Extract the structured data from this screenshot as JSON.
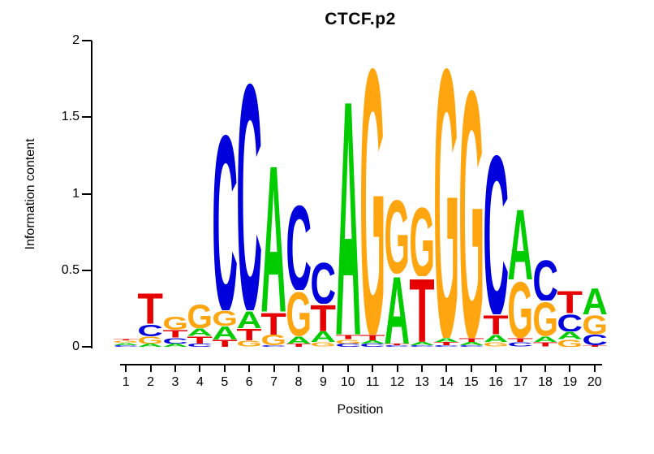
{
  "title": "CTCF.p2",
  "axes": {
    "ylabel": "Information content",
    "xlabel": "Position",
    "yticks": [
      {
        "label": "0",
        "value": 0
      },
      {
        "label": "0.5",
        "value": 0.5
      },
      {
        "label": "1",
        "value": 1
      },
      {
        "label": "1.5",
        "value": 1.5
      },
      {
        "label": "2",
        "value": 2
      }
    ],
    "xticks": [
      "1",
      "2",
      "3",
      "4",
      "5",
      "6",
      "7",
      "8",
      "9",
      "10",
      "11",
      "12",
      "13",
      "14",
      "15",
      "16",
      "17",
      "18",
      "19",
      "20"
    ]
  },
  "colors": {
    "A": "#00CC00",
    "C": "#0000DD",
    "G": "#FFA510",
    "T": "#E60000"
  },
  "chart_data": {
    "type": "bar",
    "subtype": "sequence-logo",
    "title": "CTCF.p2",
    "xlabel": "Position",
    "ylabel": "Information content",
    "ylim": [
      0,
      2
    ],
    "units": "bits",
    "stack_order": "top_to_bottom",
    "positions": [
      {
        "position": 1,
        "stack": [
          {
            "base": "T",
            "bits": 0.015
          },
          {
            "base": "G",
            "bits": 0.015
          },
          {
            "base": "A",
            "bits": 0.015
          },
          {
            "base": "C",
            "bits": 0.01
          }
        ]
      },
      {
        "position": 2,
        "stack": [
          {
            "base": "T",
            "bits": 0.21
          },
          {
            "base": "C",
            "bits": 0.08
          },
          {
            "base": "G",
            "bits": 0.05
          },
          {
            "base": "A",
            "bits": 0.02
          }
        ]
      },
      {
        "position": 3,
        "stack": [
          {
            "base": "G",
            "bits": 0.09
          },
          {
            "base": "T",
            "bits": 0.05
          },
          {
            "base": "C",
            "bits": 0.04
          },
          {
            "base": "A",
            "bits": 0.02
          }
        ]
      },
      {
        "position": 4,
        "stack": [
          {
            "base": "G",
            "bits": 0.16
          },
          {
            "base": "A",
            "bits": 0.05
          },
          {
            "base": "T",
            "bits": 0.05
          },
          {
            "base": "C",
            "bits": 0.02
          }
        ]
      },
      {
        "position": 5,
        "stack": [
          {
            "base": "C",
            "bits": 1.2
          },
          {
            "base": "G",
            "bits": 0.1
          },
          {
            "base": "A",
            "bits": 0.09
          },
          {
            "base": "T",
            "bits": 0.05
          }
        ]
      },
      {
        "position": 6,
        "stack": [
          {
            "base": "C",
            "bits": 1.55
          },
          {
            "base": "A",
            "bits": 0.12
          },
          {
            "base": "T",
            "bits": 0.08
          },
          {
            "base": "G",
            "bits": 0.04
          }
        ]
      },
      {
        "position": 7,
        "stack": [
          {
            "base": "A",
            "bits": 1.0
          },
          {
            "base": "T",
            "bits": 0.15
          },
          {
            "base": "G",
            "bits": 0.07
          },
          {
            "base": "C",
            "bits": 0.01
          }
        ]
      },
      {
        "position": 8,
        "stack": [
          {
            "base": "C",
            "bits": 0.58
          },
          {
            "base": "G",
            "bits": 0.3
          },
          {
            "base": "A",
            "bits": 0.05
          },
          {
            "base": "T",
            "bits": 0.02
          }
        ]
      },
      {
        "position": 9,
        "stack": [
          {
            "base": "C",
            "bits": 0.28
          },
          {
            "base": "T",
            "bits": 0.18
          },
          {
            "base": "A",
            "bits": 0.07
          },
          {
            "base": "G",
            "bits": 0.03
          }
        ]
      },
      {
        "position": 10,
        "stack": [
          {
            "base": "A",
            "bits": 1.6
          },
          {
            "base": "T",
            "bits": 0.03
          },
          {
            "base": "G",
            "bits": 0.03
          },
          {
            "base": "C",
            "bits": 0.02
          }
        ]
      },
      {
        "position": 11,
        "stack": [
          {
            "base": "G",
            "bits": 1.82
          },
          {
            "base": "T",
            "bits": 0.04
          },
          {
            "base": "A",
            "bits": 0.02
          },
          {
            "base": "C",
            "bits": 0.02
          }
        ]
      },
      {
        "position": 12,
        "stack": [
          {
            "base": "G",
            "bits": 0.5
          },
          {
            "base": "A",
            "bits": 0.46
          },
          {
            "base": "T",
            "bits": 0.01
          },
          {
            "base": "C",
            "bits": 0.01
          }
        ]
      },
      {
        "position": 13,
        "stack": [
          {
            "base": "G",
            "bits": 0.47
          },
          {
            "base": "T",
            "bits": 0.43
          },
          {
            "base": "A",
            "bits": 0.02
          },
          {
            "base": "C",
            "bits": 0.01
          }
        ]
      },
      {
        "position": 14,
        "stack": [
          {
            "base": "G",
            "bits": 1.84
          },
          {
            "base": "A",
            "bits": 0.03
          },
          {
            "base": "T",
            "bits": 0.02
          },
          {
            "base": "C",
            "bits": 0.01
          }
        ]
      },
      {
        "position": 15,
        "stack": [
          {
            "base": "G",
            "bits": 1.69
          },
          {
            "base": "T",
            "bits": 0.03
          },
          {
            "base": "A",
            "bits": 0.02
          },
          {
            "base": "C",
            "bits": 0.01
          }
        ]
      },
      {
        "position": 16,
        "stack": [
          {
            "base": "C",
            "bits": 1.09
          },
          {
            "base": "T",
            "bits": 0.13
          },
          {
            "base": "A",
            "bits": 0.05
          },
          {
            "base": "G",
            "bits": 0.03
          }
        ]
      },
      {
        "position": 17,
        "stack": [
          {
            "base": "A",
            "bits": 0.48
          },
          {
            "base": "G",
            "bits": 0.38
          },
          {
            "base": "T",
            "bits": 0.03
          },
          {
            "base": "C",
            "bits": 0.03
          }
        ]
      },
      {
        "position": 18,
        "stack": [
          {
            "base": "C",
            "bits": 0.28
          },
          {
            "base": "G",
            "bits": 0.23
          },
          {
            "base": "A",
            "bits": 0.04
          },
          {
            "base": "T",
            "bits": 0.03
          }
        ]
      },
      {
        "position": 19,
        "stack": [
          {
            "base": "T",
            "bits": 0.15
          },
          {
            "base": "C",
            "bits": 0.12
          },
          {
            "base": "A",
            "bits": 0.05
          },
          {
            "base": "G",
            "bits": 0.05
          }
        ]
      },
      {
        "position": 20,
        "stack": [
          {
            "base": "A",
            "bits": 0.18
          },
          {
            "base": "G",
            "bits": 0.13
          },
          {
            "base": "C",
            "bits": 0.07
          },
          {
            "base": "T",
            "bits": 0.01
          }
        ]
      }
    ]
  }
}
